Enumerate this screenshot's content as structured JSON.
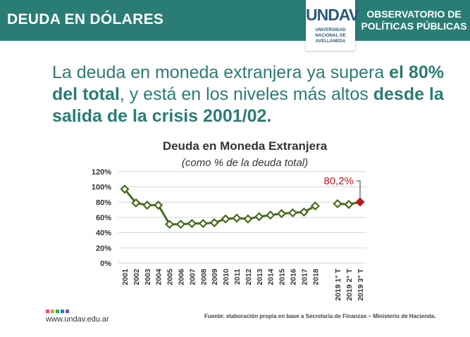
{
  "header": {
    "title": "DEUDA EN DÓLARES",
    "logo_mark": "UNDAV",
    "logo_lines": [
      "UNIVERSIDAD",
      "NACIONAL DE",
      "AVELLANEDA"
    ],
    "right_title": "OBSERVATORIO DE POLÍTICAS PÚBLICAS",
    "background_color": "#2a7d74"
  },
  "headline": {
    "part1": "La deuda en moneda extranjera ya supera ",
    "bold1": "el 80% del total",
    "part2": ", y está en los niveles más altos ",
    "bold2": "desde la salida de la crisis 2001/02."
  },
  "footer": {
    "site": "www.undav.edu.ar",
    "source": "Fuente: elaboración propia en base a Secretaría de Finanzas – Ministerio de Hacienda.",
    "dot_colors": [
      "#e94b8a",
      "#f39c12",
      "#27ae60",
      "#2980b9",
      "#8e44ad"
    ]
  },
  "chart_data": {
    "type": "line",
    "title": "Deuda en Moneda Extranjera",
    "subtitle": "(como % de la deuda total)",
    "categories": [
      "2001",
      "2002",
      "2003",
      "2004",
      "2005",
      "2006",
      "2007",
      "2008",
      "2009",
      "2010",
      "2011",
      "2012",
      "2013",
      "2014",
      "2015",
      "2016",
      "2017",
      "2018",
      "2019 1° T",
      "2019 2° T",
      "2019 3° T"
    ],
    "series": [
      {
        "values": [
          97,
          79,
          76,
          76,
          51,
          51,
          52,
          52,
          53,
          58,
          59,
          58,
          61,
          63,
          65,
          66,
          67,
          75,
          78,
          77,
          80.2
        ]
      }
    ],
    "gap_after_index": 17,
    "highlight_index": 20,
    "highlight_label": "80,2%",
    "yticks": [
      "0%",
      "20%",
      "40%",
      "60%",
      "80%",
      "100%",
      "120%"
    ],
    "ylim": [
      0,
      120
    ],
    "grid": true,
    "line_color": "#4a6b1f",
    "highlight_color": "#c0161c"
  }
}
